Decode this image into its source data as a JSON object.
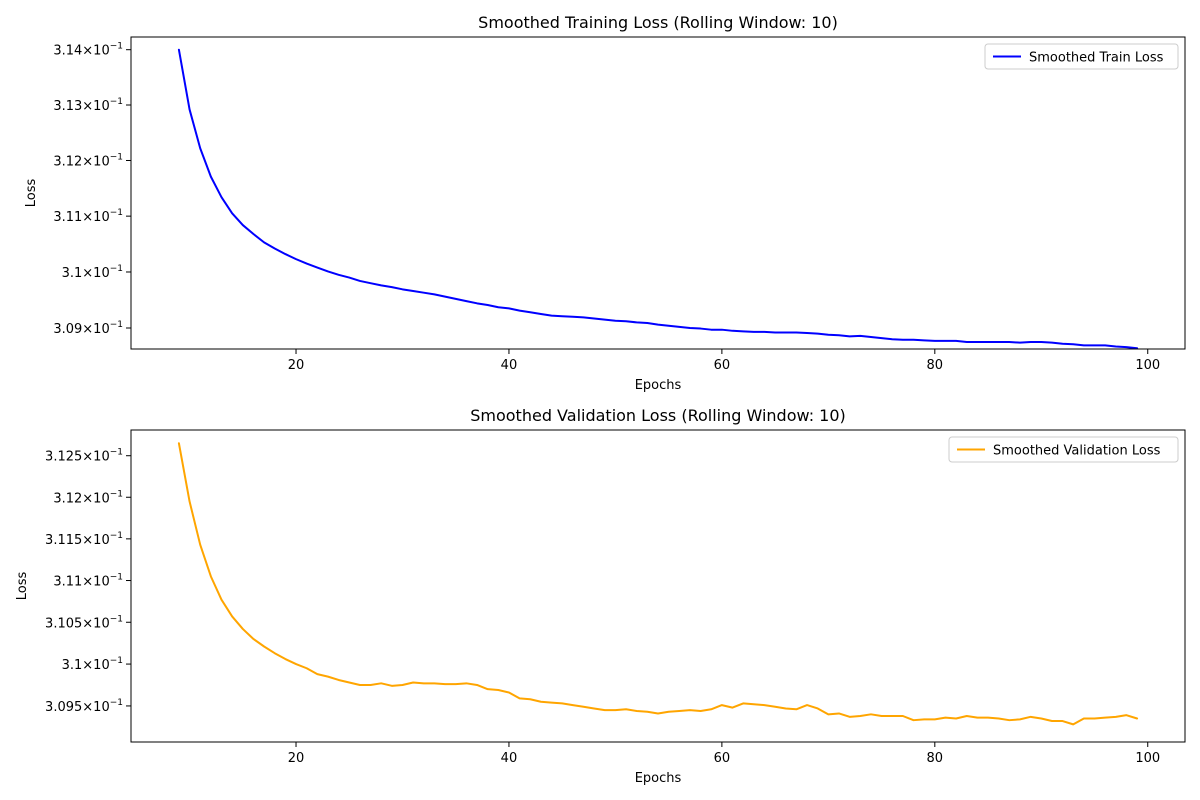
{
  "chart_data": [
    {
      "type": "line",
      "title": "Smoothed Training Loss (Rolling Window: 10)",
      "xlabel": "Epochs",
      "ylabel": "Loss",
      "xlim": [
        4.5,
        103.5
      ],
      "ylim": [
        0.308626,
        0.31423
      ],
      "xticks": [
        20,
        40,
        60,
        80,
        100
      ],
      "xtick_labels": [
        "20",
        "40",
        "60",
        "80",
        "100"
      ],
      "yticks": [
        {
          "value": 0.309,
          "mantissa": "3.09"
        },
        {
          "value": 0.31,
          "mantissa": "3.1"
        },
        {
          "value": 0.311,
          "mantissa": "3.11"
        },
        {
          "value": 0.312,
          "mantissa": "3.12"
        },
        {
          "value": 0.313,
          "mantissa": "3.13"
        },
        {
          "value": 0.314,
          "mantissa": "3.14"
        }
      ],
      "ytick_suffix": "10",
      "ytick_exponent": "−1",
      "legend_position": "top-right",
      "series": [
        {
          "name": "Smoothed Train Loss",
          "color": "#0000ff",
          "x": [
            9,
            10,
            11,
            12,
            13,
            14,
            15,
            16,
            17,
            18,
            19,
            20,
            21,
            22,
            23,
            24,
            25,
            26,
            27,
            28,
            29,
            30,
            31,
            32,
            33,
            34,
            35,
            36,
            37,
            38,
            39,
            40,
            41,
            42,
            43,
            44,
            45,
            46,
            47,
            48,
            49,
            50,
            51,
            52,
            53,
            54,
            55,
            56,
            57,
            58,
            59,
            60,
            61,
            62,
            63,
            64,
            65,
            66,
            67,
            68,
            69,
            70,
            71,
            72,
            73,
            74,
            75,
            76,
            77,
            78,
            79,
            80,
            81,
            82,
            83,
            84,
            85,
            86,
            87,
            88,
            89,
            90,
            91,
            92,
            93,
            94,
            95,
            96,
            97,
            98,
            99
          ],
          "values": [
            0.314,
            0.31292,
            0.31222,
            0.31171,
            0.31134,
            0.31105,
            0.31084,
            0.31068,
            0.31053,
            0.31042,
            0.31032,
            0.31023,
            0.31015,
            0.31008,
            0.31001,
            0.30995,
            0.3099,
            0.30984,
            0.3098,
            0.30976,
            0.30973,
            0.30969,
            0.30966,
            0.30963,
            0.3096,
            0.30956,
            0.30952,
            0.30948,
            0.30944,
            0.30941,
            0.30937,
            0.30935,
            0.30931,
            0.30928,
            0.30925,
            0.30922,
            0.30921,
            0.3092,
            0.30919,
            0.30917,
            0.30915,
            0.30913,
            0.30912,
            0.3091,
            0.30909,
            0.30906,
            0.30904,
            0.30902,
            0.309,
            0.30899,
            0.30897,
            0.30897,
            0.30895,
            0.30894,
            0.30893,
            0.30893,
            0.30892,
            0.30892,
            0.30892,
            0.30891,
            0.3089,
            0.30888,
            0.30887,
            0.30885,
            0.30886,
            0.30884,
            0.30882,
            0.3088,
            0.30879,
            0.30879,
            0.30878,
            0.30877,
            0.30877,
            0.30877,
            0.30875,
            0.30875,
            0.30875,
            0.30875,
            0.30875,
            0.30874,
            0.30875,
            0.30875,
            0.30874,
            0.30872,
            0.30871,
            0.30869,
            0.30869,
            0.30869,
            0.30867,
            0.30866,
            0.30864
          ]
        }
      ]
    },
    {
      "type": "line",
      "title": "Smoothed Validation Loss (Rolling Window: 10)",
      "xlabel": "Epochs",
      "ylabel": "Loss",
      "xlim": [
        4.5,
        103.5
      ],
      "ylim": [
        0.30907,
        0.31281
      ],
      "xticks": [
        20,
        40,
        60,
        80,
        100
      ],
      "xtick_labels": [
        "20",
        "40",
        "60",
        "80",
        "100"
      ],
      "yticks": [
        {
          "value": 0.3095,
          "mantissa": "3.095"
        },
        {
          "value": 0.31,
          "mantissa": "3.1"
        },
        {
          "value": 0.3105,
          "mantissa": "3.105"
        },
        {
          "value": 0.311,
          "mantissa": "3.11"
        },
        {
          "value": 0.3115,
          "mantissa": "3.115"
        },
        {
          "value": 0.312,
          "mantissa": "3.12"
        },
        {
          "value": 0.3125,
          "mantissa": "3.125"
        }
      ],
      "ytick_suffix": "10",
      "ytick_exponent": "−1",
      "legend_position": "top-right",
      "series": [
        {
          "name": "Smoothed Validation Loss",
          "color": "#ffa500",
          "x": [
            9,
            10,
            11,
            12,
            13,
            14,
            15,
            16,
            17,
            18,
            19,
            20,
            21,
            22,
            23,
            24,
            25,
            26,
            27,
            28,
            29,
            30,
            31,
            32,
            33,
            34,
            35,
            36,
            37,
            38,
            39,
            40,
            41,
            42,
            43,
            44,
            45,
            46,
            47,
            48,
            49,
            50,
            51,
            52,
            53,
            54,
            55,
            56,
            57,
            58,
            59,
            60,
            61,
            62,
            63,
            64,
            65,
            66,
            67,
            68,
            69,
            70,
            71,
            72,
            73,
            74,
            75,
            76,
            77,
            78,
            79,
            80,
            81,
            82,
            83,
            84,
            85,
            86,
            87,
            88,
            89,
            90,
            91,
            92,
            93,
            94,
            95,
            96,
            97,
            98,
            99
          ],
          "values": [
            0.31265,
            0.31195,
            0.31143,
            0.31105,
            0.31077,
            0.31057,
            0.31042,
            0.3103,
            0.31021,
            0.31013,
            0.31006,
            0.31,
            0.30995,
            0.30988,
            0.30985,
            0.30981,
            0.30978,
            0.30975,
            0.30975,
            0.30977,
            0.30974,
            0.30975,
            0.30978,
            0.30977,
            0.30977,
            0.30976,
            0.30976,
            0.30977,
            0.30975,
            0.3097,
            0.30969,
            0.30966,
            0.30959,
            0.30958,
            0.30955,
            0.30954,
            0.30953,
            0.30951,
            0.30949,
            0.30947,
            0.30945,
            0.30945,
            0.30946,
            0.30944,
            0.30943,
            0.30941,
            0.30943,
            0.30944,
            0.30945,
            0.30944,
            0.30946,
            0.30951,
            0.30948,
            0.30953,
            0.30952,
            0.30951,
            0.30949,
            0.30947,
            0.30946,
            0.30951,
            0.30947,
            0.3094,
            0.30941,
            0.30937,
            0.30938,
            0.3094,
            0.30938,
            0.30938,
            0.30938,
            0.30933,
            0.30934,
            0.30934,
            0.30936,
            0.30935,
            0.30938,
            0.30936,
            0.30936,
            0.30935,
            0.30933,
            0.30934,
            0.30937,
            0.30935,
            0.30932,
            0.30932,
            0.30928,
            0.30935,
            0.30935,
            0.30936,
            0.30937,
            0.30939,
            0.30935
          ]
        }
      ]
    }
  ]
}
